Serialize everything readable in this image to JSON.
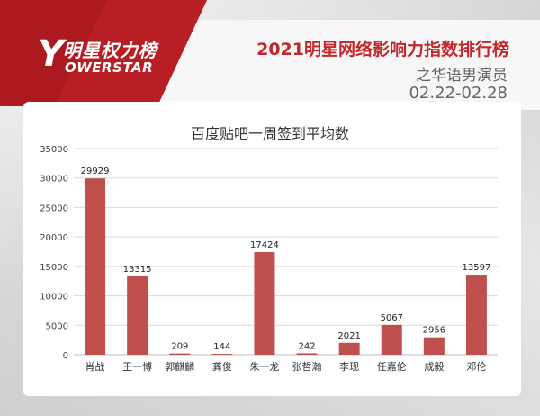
{
  "header": {
    "brand_cn": "明星权力榜",
    "brand_en": "OWERSTAR",
    "brand_letter": "Y",
    "title": "2021明星网络影响力指数排行榜",
    "subtitle": "之华语男演员",
    "date_range": "02.22-02.28"
  },
  "colors": {
    "accent": "#c0282c",
    "bar": "#c0504d",
    "grid": "#d9d9d9"
  },
  "chart_data": {
    "type": "bar",
    "title": "百度贴吧一周签到平均数",
    "categories": [
      "肖战",
      "王一博",
      "郭麒麟",
      "龚俊",
      "朱一龙",
      "张哲瀚",
      "李现",
      "任嘉伦",
      "成毅",
      "邓伦"
    ],
    "values": [
      29929,
      13315,
      209,
      144,
      17424,
      242,
      2021,
      5067,
      2956,
      13597
    ],
    "ylim": [
      0,
      35000
    ],
    "yticks": [
      "0",
      "5000",
      "10000",
      "15000",
      "20000",
      "25000",
      "30000",
      "35000"
    ],
    "grid": true,
    "data_labels": true
  }
}
